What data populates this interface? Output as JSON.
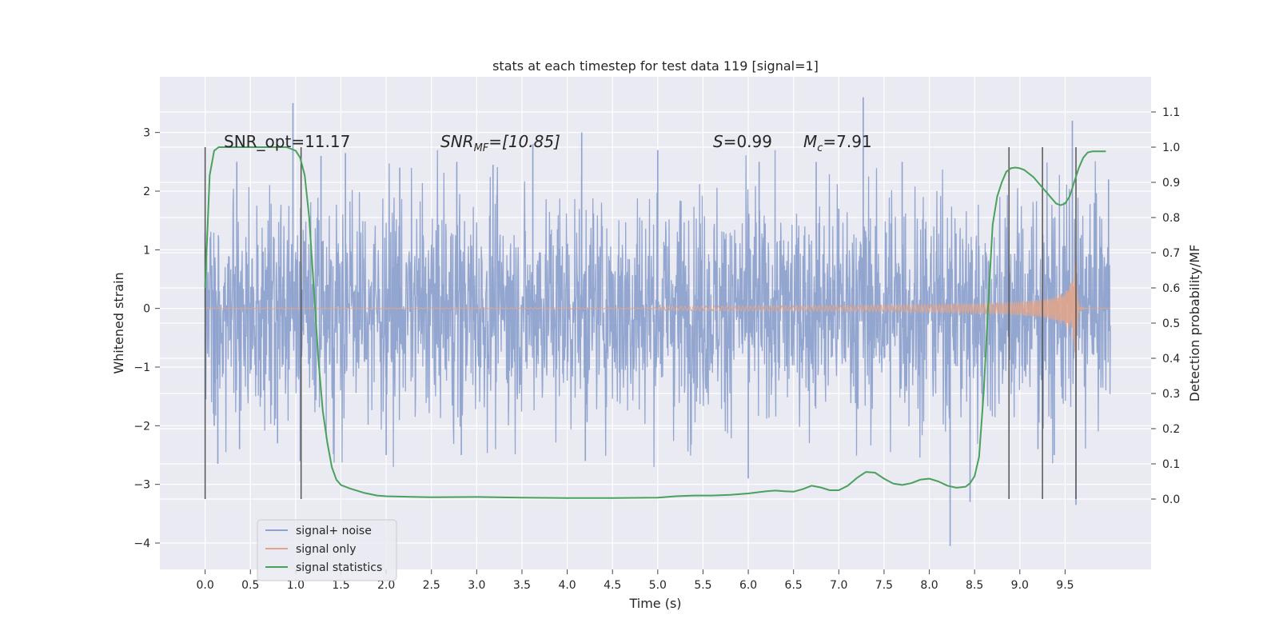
{
  "chart_data": {
    "type": "line",
    "title": "stats at each timestep for test data 119 [signal=1]",
    "xlabel": "Time (s)",
    "ylabel": "Whitened strain",
    "y2label": "Detection probability/MF",
    "xlim": [
      -0.5,
      10.45
    ],
    "ylim": [
      -4.45,
      3.95
    ],
    "y2lim": [
      -0.2,
      1.2
    ],
    "x_ticks": [
      "0.0",
      "0.5",
      "1.0",
      "1.5",
      "2.0",
      "2.5",
      "3.0",
      "3.5",
      "4.0",
      "4.5",
      "5.0",
      "5.5",
      "6.0",
      "6.5",
      "7.0",
      "7.5",
      "8.0",
      "8.5",
      "9.0",
      "9.5"
    ],
    "y_ticks": [
      "3",
      "2",
      "1",
      "0",
      "−1",
      "−2",
      "−3",
      "−4"
    ],
    "y2_ticks": [
      "1.1",
      "1.0",
      "0.9",
      "0.8",
      "0.7",
      "0.6",
      "0.5",
      "0.4",
      "0.3",
      "0.2",
      "0.1",
      "0.0"
    ],
    "grid": true,
    "legend_position": "lower-left",
    "annotations": {
      "snr_opt": "SNR_opt=11.17",
      "snr_mf_main": "SNR",
      "snr_mf_sub": "MF",
      "snr_mf_value": "=[10.85]",
      "s_label": "S",
      "s_value": "=0.99",
      "mc_label": "M",
      "mc_sub": "c",
      "mc_value": "=7.91"
    },
    "vertical_markers": [
      0.0,
      1.06,
      8.88,
      9.25,
      9.62
    ],
    "series": [
      {
        "name": "signal+ noise",
        "color": "#8ea2ce",
        "axis": "left",
        "description_hidden": true,
        "x_range": [
          0.0,
          10.0
        ],
        "amplitude": 1.0,
        "outliers": [
          [
            0.0,
            1.3
          ],
          [
            0.1,
            -2.0
          ],
          [
            0.14,
            -2.65
          ],
          [
            0.35,
            2.5
          ],
          [
            0.38,
            -2.4
          ],
          [
            0.8,
            -2.3
          ],
          [
            0.97,
            3.5
          ],
          [
            1.05,
            -2.6
          ],
          [
            1.28,
            2.6
          ],
          [
            1.55,
            2.65
          ],
          [
            2.0,
            -2.5
          ],
          [
            2.15,
            2.4
          ],
          [
            2.78,
            2.5
          ],
          [
            2.83,
            -2.5
          ],
          [
            3.18,
            2.45
          ],
          [
            3.62,
            2.8
          ],
          [
            4.16,
            3.0
          ],
          [
            4.2,
            -2.6
          ],
          [
            5.0,
            2.7
          ],
          [
            6.0,
            -2.9
          ],
          [
            6.12,
            2.5
          ],
          [
            6.75,
            2.5
          ],
          [
            7.0,
            1.7
          ],
          [
            7.27,
            3.6
          ],
          [
            7.7,
            2.5
          ],
          [
            8.23,
            -4.05
          ],
          [
            8.45,
            -3.3
          ],
          [
            9.2,
            -2.4
          ],
          [
            9.38,
            -2.5
          ],
          [
            9.58,
            3.2
          ],
          [
            9.62,
            -3.35
          ],
          [
            9.98,
            2.2
          ]
        ]
      },
      {
        "name": "signal only",
        "color": "#e0a58c",
        "axis": "left",
        "x_range": [
          0.0,
          10.0
        ],
        "merger_time": 9.63,
        "peak_amplitude": 1.35
      },
      {
        "name": "signal statistics",
        "color": "#4aa15b",
        "axis": "right",
        "x": [
          0.0,
          0.05,
          0.1,
          0.15,
          0.2,
          0.3,
          0.5,
          0.7,
          0.9,
          1.0,
          1.05,
          1.1,
          1.15,
          1.2,
          1.25,
          1.3,
          1.35,
          1.4,
          1.45,
          1.5,
          1.6,
          1.75,
          1.9,
          2.0,
          2.5,
          3.0,
          3.5,
          4.0,
          4.5,
          5.0,
          5.2,
          5.4,
          5.6,
          5.8,
          6.0,
          6.2,
          6.3,
          6.4,
          6.5,
          6.6,
          6.7,
          6.8,
          6.9,
          7.0,
          7.1,
          7.2,
          7.3,
          7.4,
          7.5,
          7.6,
          7.7,
          7.8,
          7.9,
          8.0,
          8.1,
          8.2,
          8.3,
          8.4,
          8.45,
          8.5,
          8.55,
          8.6,
          8.65,
          8.7,
          8.75,
          8.8,
          8.85,
          8.9,
          8.95,
          9.0,
          9.05,
          9.1,
          9.15,
          9.2,
          9.25,
          9.3,
          9.35,
          9.4,
          9.45,
          9.5,
          9.55,
          9.6,
          9.65,
          9.7,
          9.75,
          9.8,
          9.85,
          9.9,
          9.95
        ],
        "y": [
          0.6,
          0.92,
          0.99,
          1.0,
          1.0,
          1.0,
          1.0,
          1.0,
          1.0,
          0.99,
          0.97,
          0.92,
          0.8,
          0.6,
          0.4,
          0.25,
          0.16,
          0.09,
          0.055,
          0.04,
          0.03,
          0.018,
          0.01,
          0.008,
          0.005,
          0.006,
          0.004,
          0.003,
          0.003,
          0.004,
          0.008,
          0.01,
          0.01,
          0.012,
          0.016,
          0.022,
          0.024,
          0.022,
          0.021,
          0.028,
          0.038,
          0.033,
          0.025,
          0.025,
          0.038,
          0.06,
          0.077,
          0.075,
          0.058,
          0.044,
          0.04,
          0.045,
          0.055,
          0.058,
          0.05,
          0.038,
          0.032,
          0.035,
          0.045,
          0.065,
          0.12,
          0.3,
          0.55,
          0.78,
          0.86,
          0.9,
          0.93,
          0.94,
          0.942,
          0.94,
          0.935,
          0.925,
          0.915,
          0.9,
          0.885,
          0.87,
          0.855,
          0.84,
          0.835,
          0.84,
          0.86,
          0.9,
          0.94,
          0.97,
          0.985,
          0.988,
          0.988,
          0.988,
          0.988
        ]
      }
    ]
  }
}
